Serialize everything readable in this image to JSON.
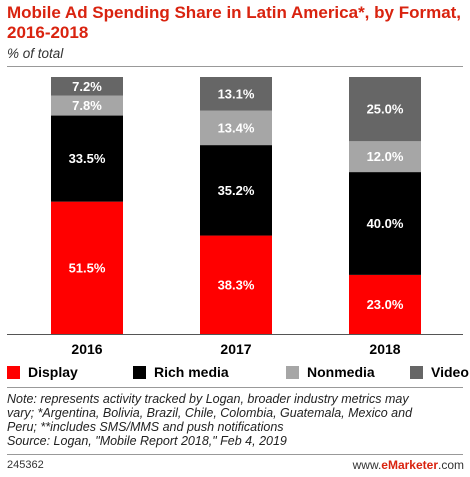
{
  "header": {
    "title": "Mobile Ad Spending Share in Latin America*, by Format, 2016-2018",
    "subtitle": "% of total"
  },
  "chart_data": {
    "type": "bar",
    "stacked": true,
    "categories": [
      "2016",
      "2017",
      "2018"
    ],
    "series": [
      {
        "name": "Display",
        "values": [
          51.5,
          38.3,
          23.0
        ],
        "color": "#ff0000"
      },
      {
        "name": "Rich media",
        "values": [
          33.5,
          35.2,
          40.0
        ],
        "color": "#000000"
      },
      {
        "name": "Nonmedia",
        "values": [
          7.8,
          13.4,
          12.0
        ],
        "color": "#a6a6a6"
      },
      {
        "name": "Video",
        "values": [
          7.2,
          13.1,
          25.0
        ],
        "color": "#666666"
      }
    ],
    "value_labels": [
      [
        "51.5%",
        "38.3%",
        "23.0%"
      ],
      [
        "33.5%",
        "35.2%",
        "40.0%"
      ],
      [
        "7.8%",
        "13.4%",
        "12.0%"
      ],
      [
        "7.2%",
        "13.1%",
        "25.0%"
      ]
    ],
    "ylim": [
      0,
      100
    ],
    "grid": false,
    "legend_position": "bottom"
  },
  "legend": {
    "items": [
      {
        "label": "Display",
        "color": "#ff0000"
      },
      {
        "label": "Rich media",
        "color": "#000000"
      },
      {
        "label": "Nonmedia",
        "color": "#a6a6a6"
      },
      {
        "label": "Video",
        "color": "#666666"
      }
    ]
  },
  "note": {
    "line1": "Note: represents activity tracked by Logan, broader industry metrics may",
    "line2": "vary; *Argentina, Bolivia, Brazil, Chile, Colombia, Guatemala, Mexico and",
    "line3": "Peru; **includes SMS/MMS and push notifications",
    "line4": "Source: Logan, \"Mobile Report 2018,\" Feb 4, 2019"
  },
  "footer": {
    "id": "245362",
    "brand_prefix": "www.",
    "brand_name": "eMarketer",
    "brand_suffix": ".com"
  }
}
